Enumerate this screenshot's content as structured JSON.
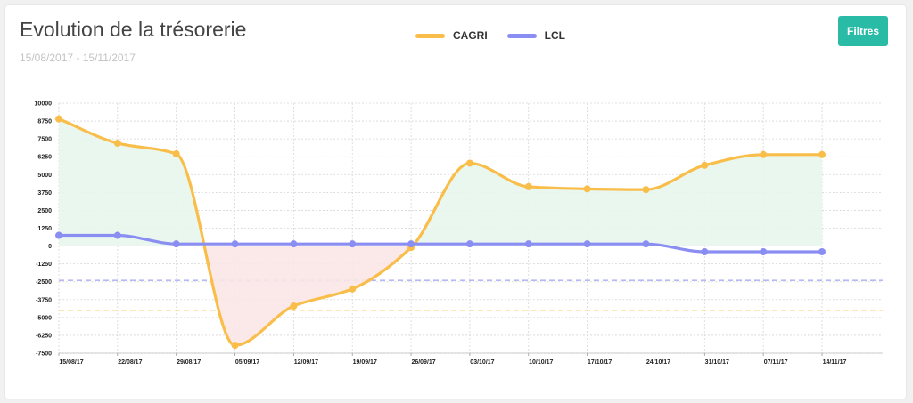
{
  "header": {
    "title": "Evolution de la trésorerie",
    "date_range": "15/08/2017 - 15/11/2017",
    "filter_label": "Filtres"
  },
  "colors": {
    "cagri": "#f9bd4a",
    "lcl": "#8a8ef2",
    "button": "#2abba7",
    "positive_fill": "#e8f6ec",
    "negative_fill": "#fbe7e7",
    "zero_tick": "#e53935"
  },
  "chart_data": {
    "type": "line",
    "x": [
      "15/08/17",
      "22/08/17",
      "29/08/17",
      "05/09/17",
      "12/09/17",
      "19/09/17",
      "26/09/17",
      "03/10/17",
      "10/10/17",
      "17/10/17",
      "24/10/17",
      "31/10/17",
      "07/11/17",
      "14/11/17"
    ],
    "series": [
      {
        "name": "CAGRI",
        "values": [
          8900,
          7200,
          6450,
          -6950,
          -4200,
          -3000,
          -100,
          5800,
          4150,
          4000,
          3950,
          5650,
          6400,
          6400
        ]
      },
      {
        "name": "LCL",
        "values": [
          750,
          750,
          150,
          150,
          150,
          150,
          150,
          150,
          150,
          150,
          150,
          -400,
          -400,
          -400
        ]
      }
    ],
    "yticks": [
      10000,
      8750,
      7500,
      6250,
      5000,
      3750,
      2500,
      1250,
      0,
      -1250,
      -2500,
      -3750,
      -5000,
      -6250,
      -7500
    ],
    "ytick_labels": [
      "10000",
      "8750",
      "7500",
      "6250",
      "5000",
      "3750",
      "2500",
      "1250",
      "0",
      "-1250",
      "-2500",
      "-3750",
      "-5000",
      "-6250",
      "-7500"
    ],
    "ylim": [
      -7500,
      10000
    ],
    "thresholds": [
      {
        "series": "LCL",
        "value": -2400
      },
      {
        "series": "CAGRI",
        "value": -4500
      }
    ],
    "grid": true,
    "legend": "top-center"
  }
}
